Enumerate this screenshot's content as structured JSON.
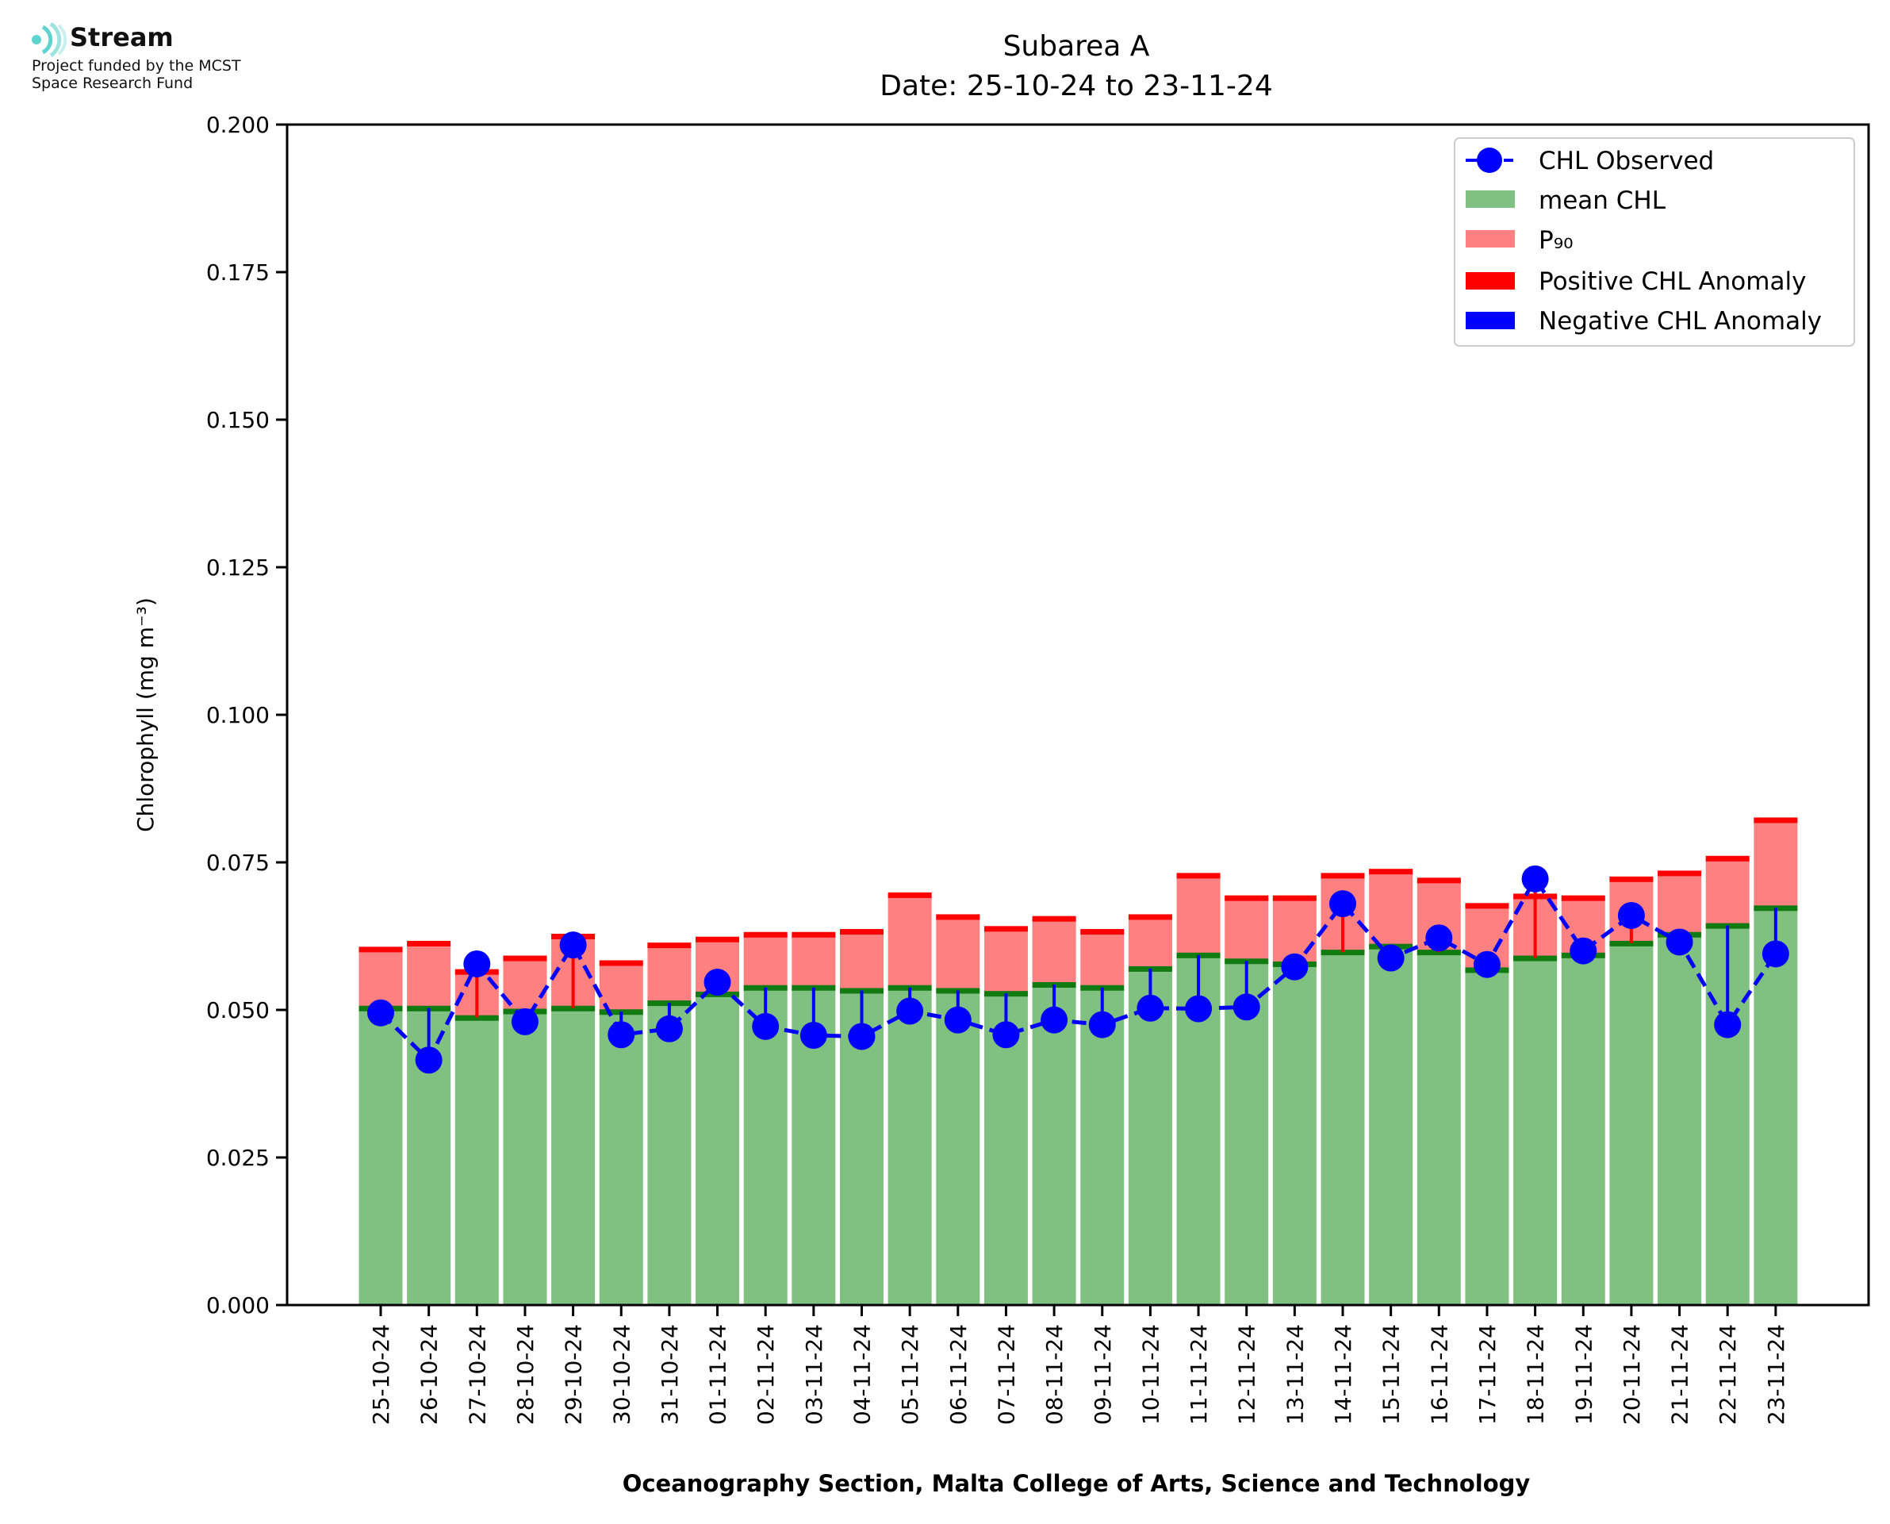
{
  "branding": {
    "logo_name": "Stream",
    "logo_icon": "signal-waves-icon",
    "funding_line1": "Project funded by the MCST",
    "funding_line2": "Space Research Fund"
  },
  "chart_data": {
    "type": "bar",
    "title": "Subarea A",
    "subtitle": "Date: 25-10-24 to 23-11-24",
    "xlabel": "Oceanography Section, Malta College of Arts, Science and Technology",
    "ylabel": "Chlorophyll (mg m⁻³)",
    "ylim": [
      0,
      0.2
    ],
    "yticks": [
      "0.000",
      "0.025",
      "0.050",
      "0.075",
      "0.100",
      "0.125",
      "0.150",
      "0.175",
      "0.200"
    ],
    "grid": false,
    "legend_position": "top-right",
    "categories": [
      "25-10-24",
      "26-10-24",
      "27-10-24",
      "28-10-24",
      "29-10-24",
      "30-10-24",
      "31-10-24",
      "01-11-24",
      "02-11-24",
      "03-11-24",
      "04-11-24",
      "05-11-24",
      "06-11-24",
      "07-11-24",
      "08-11-24",
      "09-11-24",
      "10-11-24",
      "11-11-24",
      "12-11-24",
      "13-11-24",
      "14-11-24",
      "15-11-24",
      "16-11-24",
      "17-11-24",
      "18-11-24",
      "19-11-24",
      "20-11-24",
      "21-11-24",
      "22-11-24",
      "23-11-24"
    ],
    "series": [
      {
        "name": "CHL Observed",
        "kind": "line-markers",
        "color": "#0000ff",
        "values": [
          0.0495,
          0.0415,
          0.0578,
          0.048,
          0.061,
          0.0458,
          0.0468,
          0.0547,
          0.0472,
          0.0457,
          0.0455,
          0.0498,
          0.0483,
          0.0458,
          0.0483,
          0.0475,
          0.0503,
          0.0502,
          0.0505,
          0.0573,
          0.068,
          0.0588,
          0.0622,
          0.0577,
          0.0722,
          0.06,
          0.066,
          0.0615,
          0.0475,
          0.0595
        ]
      },
      {
        "name": "mean CHL",
        "kind": "bar",
        "color": "#80c080",
        "values": [
          0.0503,
          0.0503,
          0.0487,
          0.0498,
          0.0503,
          0.0497,
          0.0512,
          0.0527,
          0.0538,
          0.0538,
          0.0533,
          0.0538,
          0.0533,
          0.0528,
          0.0543,
          0.0538,
          0.057,
          0.0593,
          0.0583,
          0.0578,
          0.0598,
          0.0608,
          0.0598,
          0.0568,
          0.0588,
          0.0593,
          0.0613,
          0.0628,
          0.0643,
          0.0673
        ]
      },
      {
        "name": "P₉₀",
        "kind": "bar",
        "color": "#ff8080",
        "values": [
          0.0603,
          0.0613,
          0.0565,
          0.0588,
          0.0625,
          0.058,
          0.061,
          0.062,
          0.0628,
          0.0628,
          0.0633,
          0.0695,
          0.0658,
          0.0638,
          0.0655,
          0.0633,
          0.0658,
          0.0728,
          0.069,
          0.069,
          0.0728,
          0.0735,
          0.072,
          0.0677,
          0.0693,
          0.069,
          0.0722,
          0.0732,
          0.0757,
          0.0822
        ]
      },
      {
        "name": "Positive CHL Anomaly",
        "kind": "stem",
        "color": "#ff0000"
      },
      {
        "name": "Negative CHL Anomaly",
        "kind": "stem",
        "color": "#0000ff"
      }
    ]
  }
}
